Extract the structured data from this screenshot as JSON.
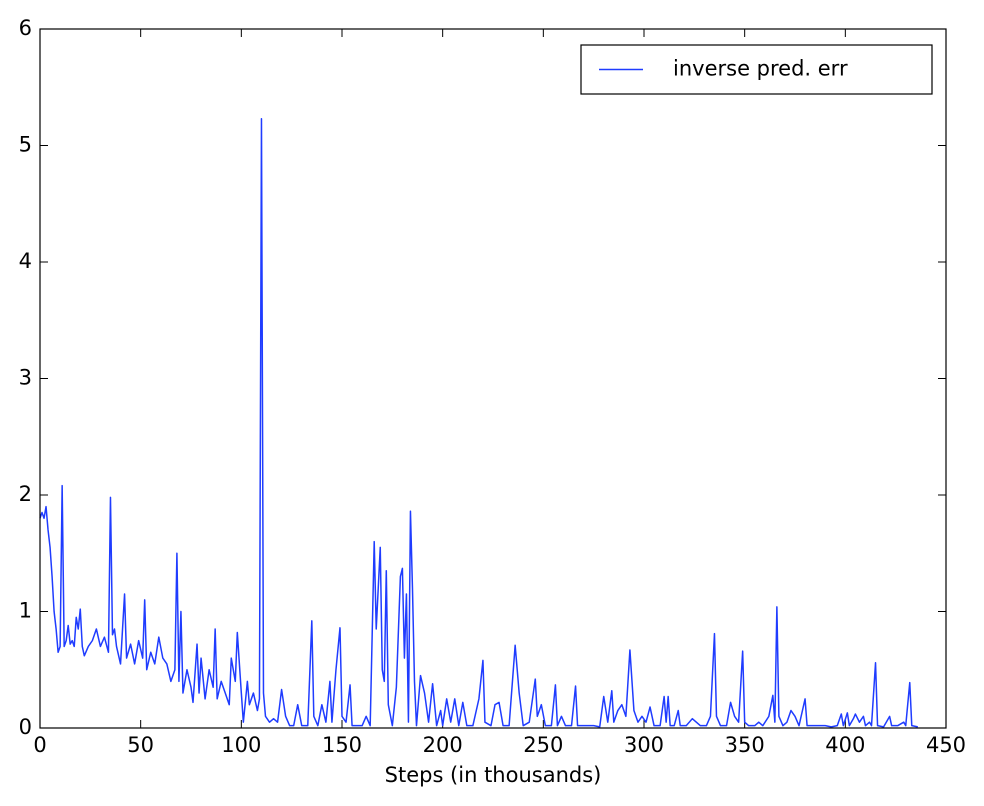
{
  "chart_data": {
    "type": "line",
    "xlabel": "Steps (in thousands)",
    "x": [
      0,
      1,
      2,
      3,
      4,
      5,
      6,
      7,
      8,
      9,
      10,
      11,
      12,
      13,
      14,
      15,
      16,
      17,
      18,
      19,
      20,
      21,
      22,
      24,
      26,
      28,
      30,
      32,
      34,
      35,
      36,
      37,
      38,
      40,
      42,
      43,
      45,
      47,
      49,
      51,
      52,
      53,
      55,
      57,
      59,
      61,
      63,
      65,
      67,
      68,
      69,
      70,
      71,
      73,
      75,
      76,
      78,
      79,
      80,
      82,
      84,
      86,
      87,
      88,
      90,
      92,
      94,
      95,
      97,
      98,
      100,
      101,
      103,
      104,
      106,
      108,
      109,
      110,
      111,
      112,
      114,
      116,
      118,
      120,
      122,
      124,
      126,
      128,
      130,
      133,
      135,
      136,
      138,
      140,
      142,
      144,
      145,
      147,
      149,
      150,
      152,
      154,
      155,
      158,
      160,
      162,
      164,
      166,
      167,
      168,
      169,
      170,
      171,
      172,
      173,
      175,
      177,
      179,
      180,
      181,
      182,
      183,
      184,
      185,
      186,
      187,
      189,
      191,
      193,
      195,
      197,
      199,
      200,
      202,
      204,
      206,
      208,
      210,
      212,
      215,
      218,
      220,
      221,
      224,
      226,
      228,
      230,
      233,
      236,
      238,
      240,
      243,
      246,
      247,
      249,
      251,
      254,
      256,
      257,
      259,
      261,
      264,
      266,
      267,
      270,
      275,
      278,
      280,
      282,
      284,
      285,
      287,
      289,
      291,
      293,
      295,
      297,
      299,
      301,
      303,
      305,
      308,
      310,
      311,
      312,
      313,
      315,
      317,
      318,
      321,
      324,
      326,
      328,
      331,
      333,
      335,
      336,
      338,
      341,
      343,
      345,
      347,
      349,
      350,
      352,
      355,
      357,
      359,
      362,
      364,
      365,
      366,
      367,
      369,
      371,
      373,
      375,
      377,
      380,
      381,
      384,
      387,
      390,
      393,
      396,
      398,
      399,
      401,
      402,
      404,
      405,
      407,
      409,
      410,
      412,
      413,
      415,
      416,
      419,
      422,
      423,
      426,
      429,
      430,
      432,
      433,
      436
    ],
    "series": [
      {
        "name": "inverse pred. err",
        "color": "#1f3cff",
        "values": [
          1.8,
          1.85,
          1.8,
          1.9,
          1.7,
          1.55,
          1.3,
          1.0,
          0.85,
          0.65,
          0.7,
          2.08,
          0.7,
          0.75,
          0.88,
          0.72,
          0.75,
          0.7,
          0.95,
          0.85,
          1.02,
          0.7,
          0.62,
          0.7,
          0.75,
          0.85,
          0.7,
          0.78,
          0.65,
          1.98,
          0.8,
          0.85,
          0.7,
          0.55,
          1.15,
          0.6,
          0.72,
          0.55,
          0.75,
          0.6,
          1.1,
          0.5,
          0.65,
          0.55,
          0.78,
          0.6,
          0.55,
          0.4,
          0.5,
          1.5,
          0.4,
          1.0,
          0.3,
          0.5,
          0.35,
          0.22,
          0.72,
          0.3,
          0.6,
          0.25,
          0.5,
          0.35,
          0.85,
          0.25,
          0.4,
          0.3,
          0.2,
          0.6,
          0.4,
          0.82,
          0.3,
          0.05,
          0.4,
          0.2,
          0.3,
          0.15,
          0.25,
          5.23,
          0.3,
          0.1,
          0.05,
          0.08,
          0.05,
          0.33,
          0.1,
          0.02,
          0.02,
          0.2,
          0.02,
          0.02,
          0.92,
          0.1,
          0.02,
          0.2,
          0.05,
          0.4,
          0.05,
          0.5,
          0.86,
          0.1,
          0.05,
          0.37,
          0.02,
          0.02,
          0.02,
          0.1,
          0.02,
          1.6,
          0.85,
          1.2,
          1.55,
          0.5,
          0.4,
          1.35,
          0.2,
          0.02,
          0.35,
          1.3,
          1.37,
          0.6,
          1.15,
          0.05,
          1.86,
          1.2,
          0.4,
          0.02,
          0.45,
          0.3,
          0.05,
          0.38,
          0.02,
          0.15,
          0.02,
          0.25,
          0.05,
          0.25,
          0.02,
          0.22,
          0.02,
          0.02,
          0.25,
          0.58,
          0.05,
          0.02,
          0.2,
          0.22,
          0.02,
          0.02,
          0.71,
          0.3,
          0.02,
          0.05,
          0.42,
          0.1,
          0.2,
          0.02,
          0.02,
          0.37,
          0.02,
          0.1,
          0.02,
          0.02,
          0.36,
          0.02,
          0.02,
          0.02,
          0.01,
          0.27,
          0.05,
          0.32,
          0.05,
          0.15,
          0.2,
          0.1,
          0.67,
          0.15,
          0.05,
          0.1,
          0.05,
          0.18,
          0.02,
          0.02,
          0.27,
          0.05,
          0.27,
          0.02,
          0.02,
          0.15,
          0.02,
          0.02,
          0.08,
          0.05,
          0.02,
          0.02,
          0.1,
          0.81,
          0.1,
          0.02,
          0.02,
          0.22,
          0.1,
          0.05,
          0.66,
          0.05,
          0.02,
          0.02,
          0.05,
          0.02,
          0.1,
          0.28,
          0.05,
          1.04,
          0.1,
          0.02,
          0.05,
          0.15,
          0.1,
          0.02,
          0.25,
          0.02,
          0.02,
          0.02,
          0.02,
          0.01,
          0.02,
          0.12,
          0.02,
          0.13,
          0.02,
          0.08,
          0.12,
          0.05,
          0.1,
          0.02,
          0.05,
          0.02,
          0.56,
          0.02,
          0.01,
          0.1,
          0.02,
          0.02,
          0.05,
          0.02,
          0.39,
          0.02,
          0.01
        ]
      }
    ],
    "xlim": [
      0,
      450
    ],
    "xticks": [
      0,
      50,
      100,
      150,
      200,
      250,
      300,
      350,
      400,
      450
    ],
    "ylim": [
      0,
      6
    ],
    "yticks": [
      0,
      1,
      2,
      3,
      4,
      5,
      6
    ],
    "legend": "upper right"
  }
}
